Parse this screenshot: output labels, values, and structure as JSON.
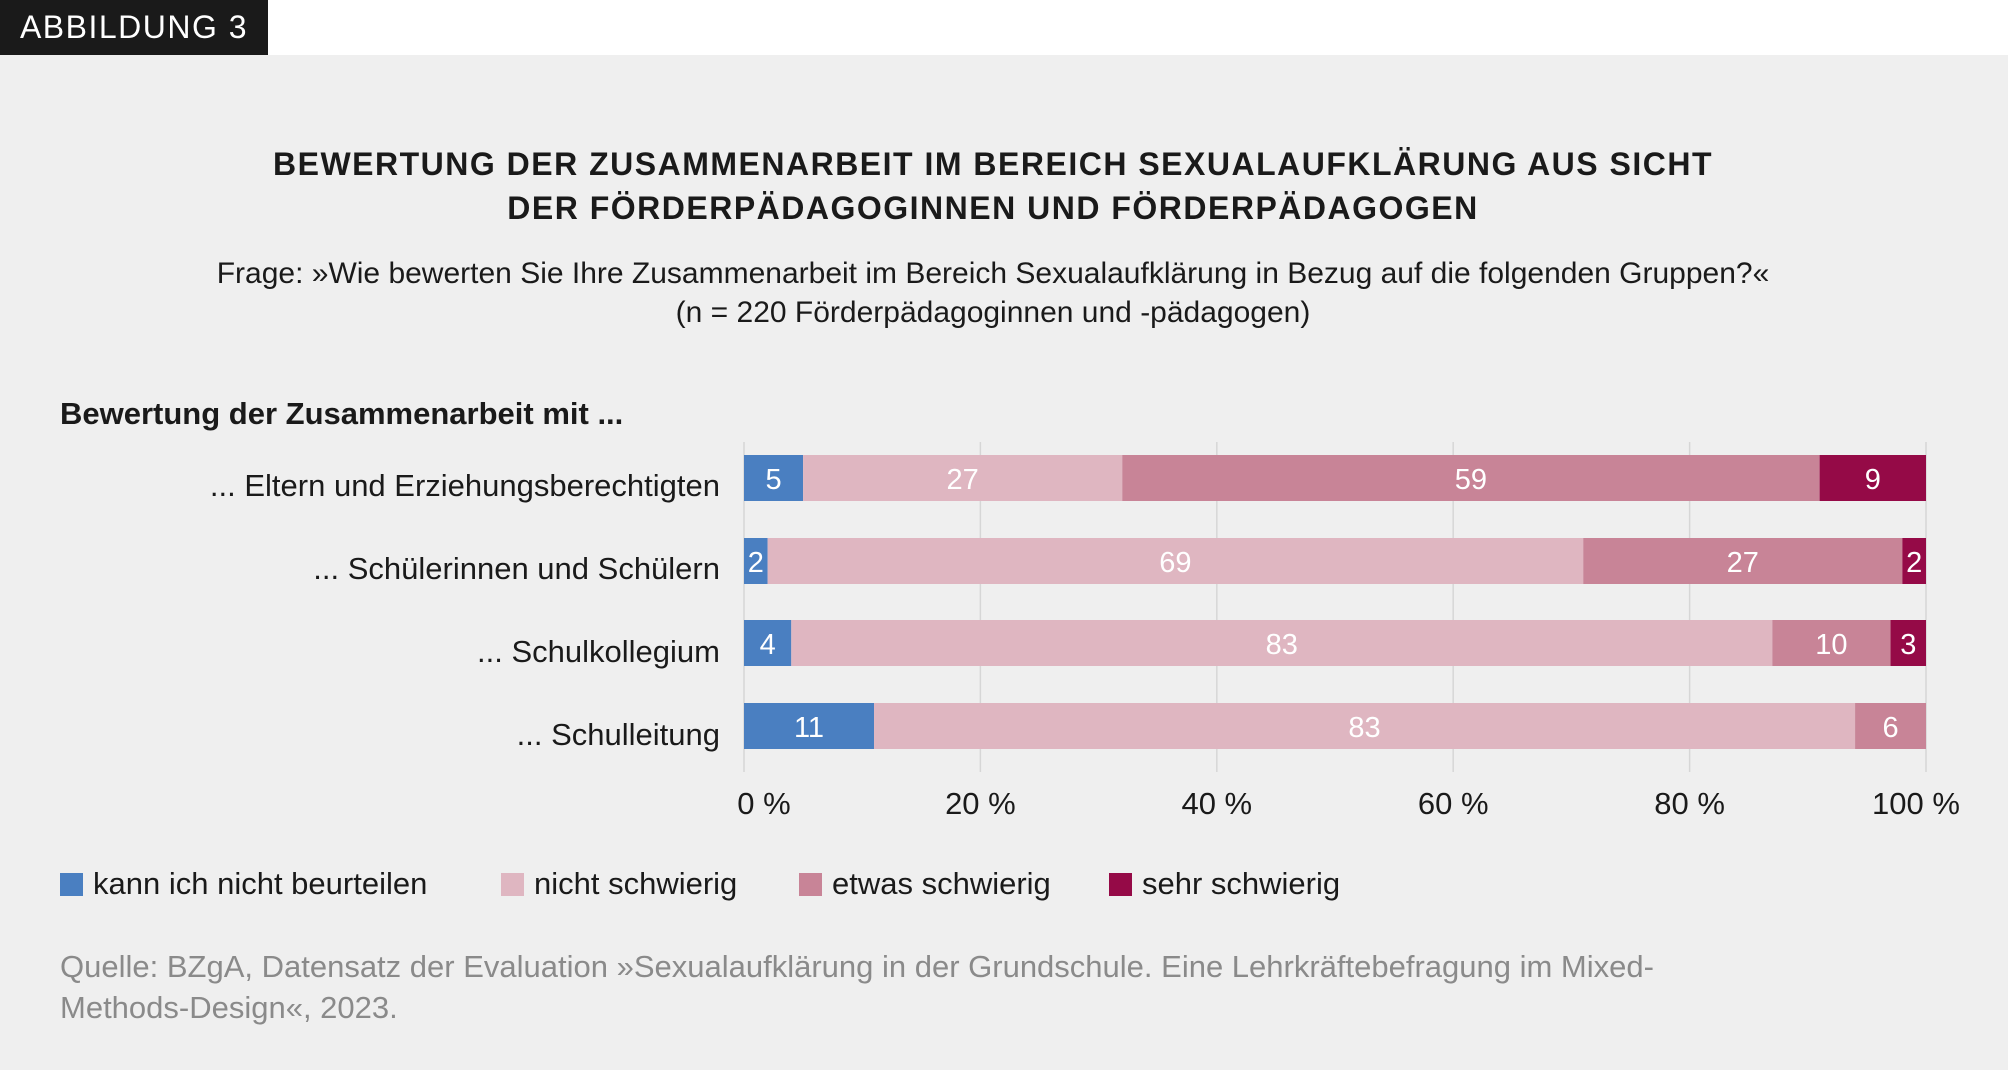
{
  "figure_label": "ABBILDUNG 3",
  "source": [
    "Quelle: BZgA, Datensatz der Evaluation »Sexualaufklärung in der Grundschule. Eine Lehrkräftebefragung im Mixed-",
    "Methods-Design«, 2023."
  ],
  "chart_data": {
    "type": "bar",
    "orientation": "horizontal-stacked-100",
    "title": [
      "BEWERTUNG DER ZUSAMMENARBEIT IM BEREICH SEXUALAUFKLÄRUNG AUS SICHT",
      "DER FÖRDERPÄDAGOGINNEN UND FÖRDERPÄDAGOGEN"
    ],
    "subtitle": [
      "Frage: »Wie bewerten Sie Ihre Zusammenarbeit im Bereich Sexualaufklärung in Bezug auf die folgenden Gruppen?«",
      "(n = 220 Förderpädagoginnen und -pädagogen)"
    ],
    "ylabel": "Bewertung der Zusammenarbeit mit ...",
    "categories": [
      "... Eltern und Erziehungsberechtigten",
      "... Schülerinnen und Schülern",
      "... Schulkollegium",
      "... Schulleitung"
    ],
    "xlim": [
      0,
      100
    ],
    "xticks": [
      "0 %",
      "20 %",
      "40 %",
      "60 %",
      "80 %",
      "100 %"
    ],
    "grid": true,
    "legend_position": "bottom-left",
    "series": [
      {
        "name": "kann ich nicht beurteilen",
        "color": "#4a7fc1",
        "values": [
          5,
          2,
          4,
          11
        ]
      },
      {
        "name": "nicht schwierig",
        "color": "#dfb6c1",
        "values": [
          27,
          69,
          83,
          83
        ]
      },
      {
        "name": "etwas schwierig",
        "color": "#c88497",
        "values": [
          59,
          27,
          10,
          6
        ]
      },
      {
        "name": "sehr schwierig",
        "color": "#950a47",
        "values": [
          9,
          2,
          3,
          null
        ]
      }
    ]
  }
}
